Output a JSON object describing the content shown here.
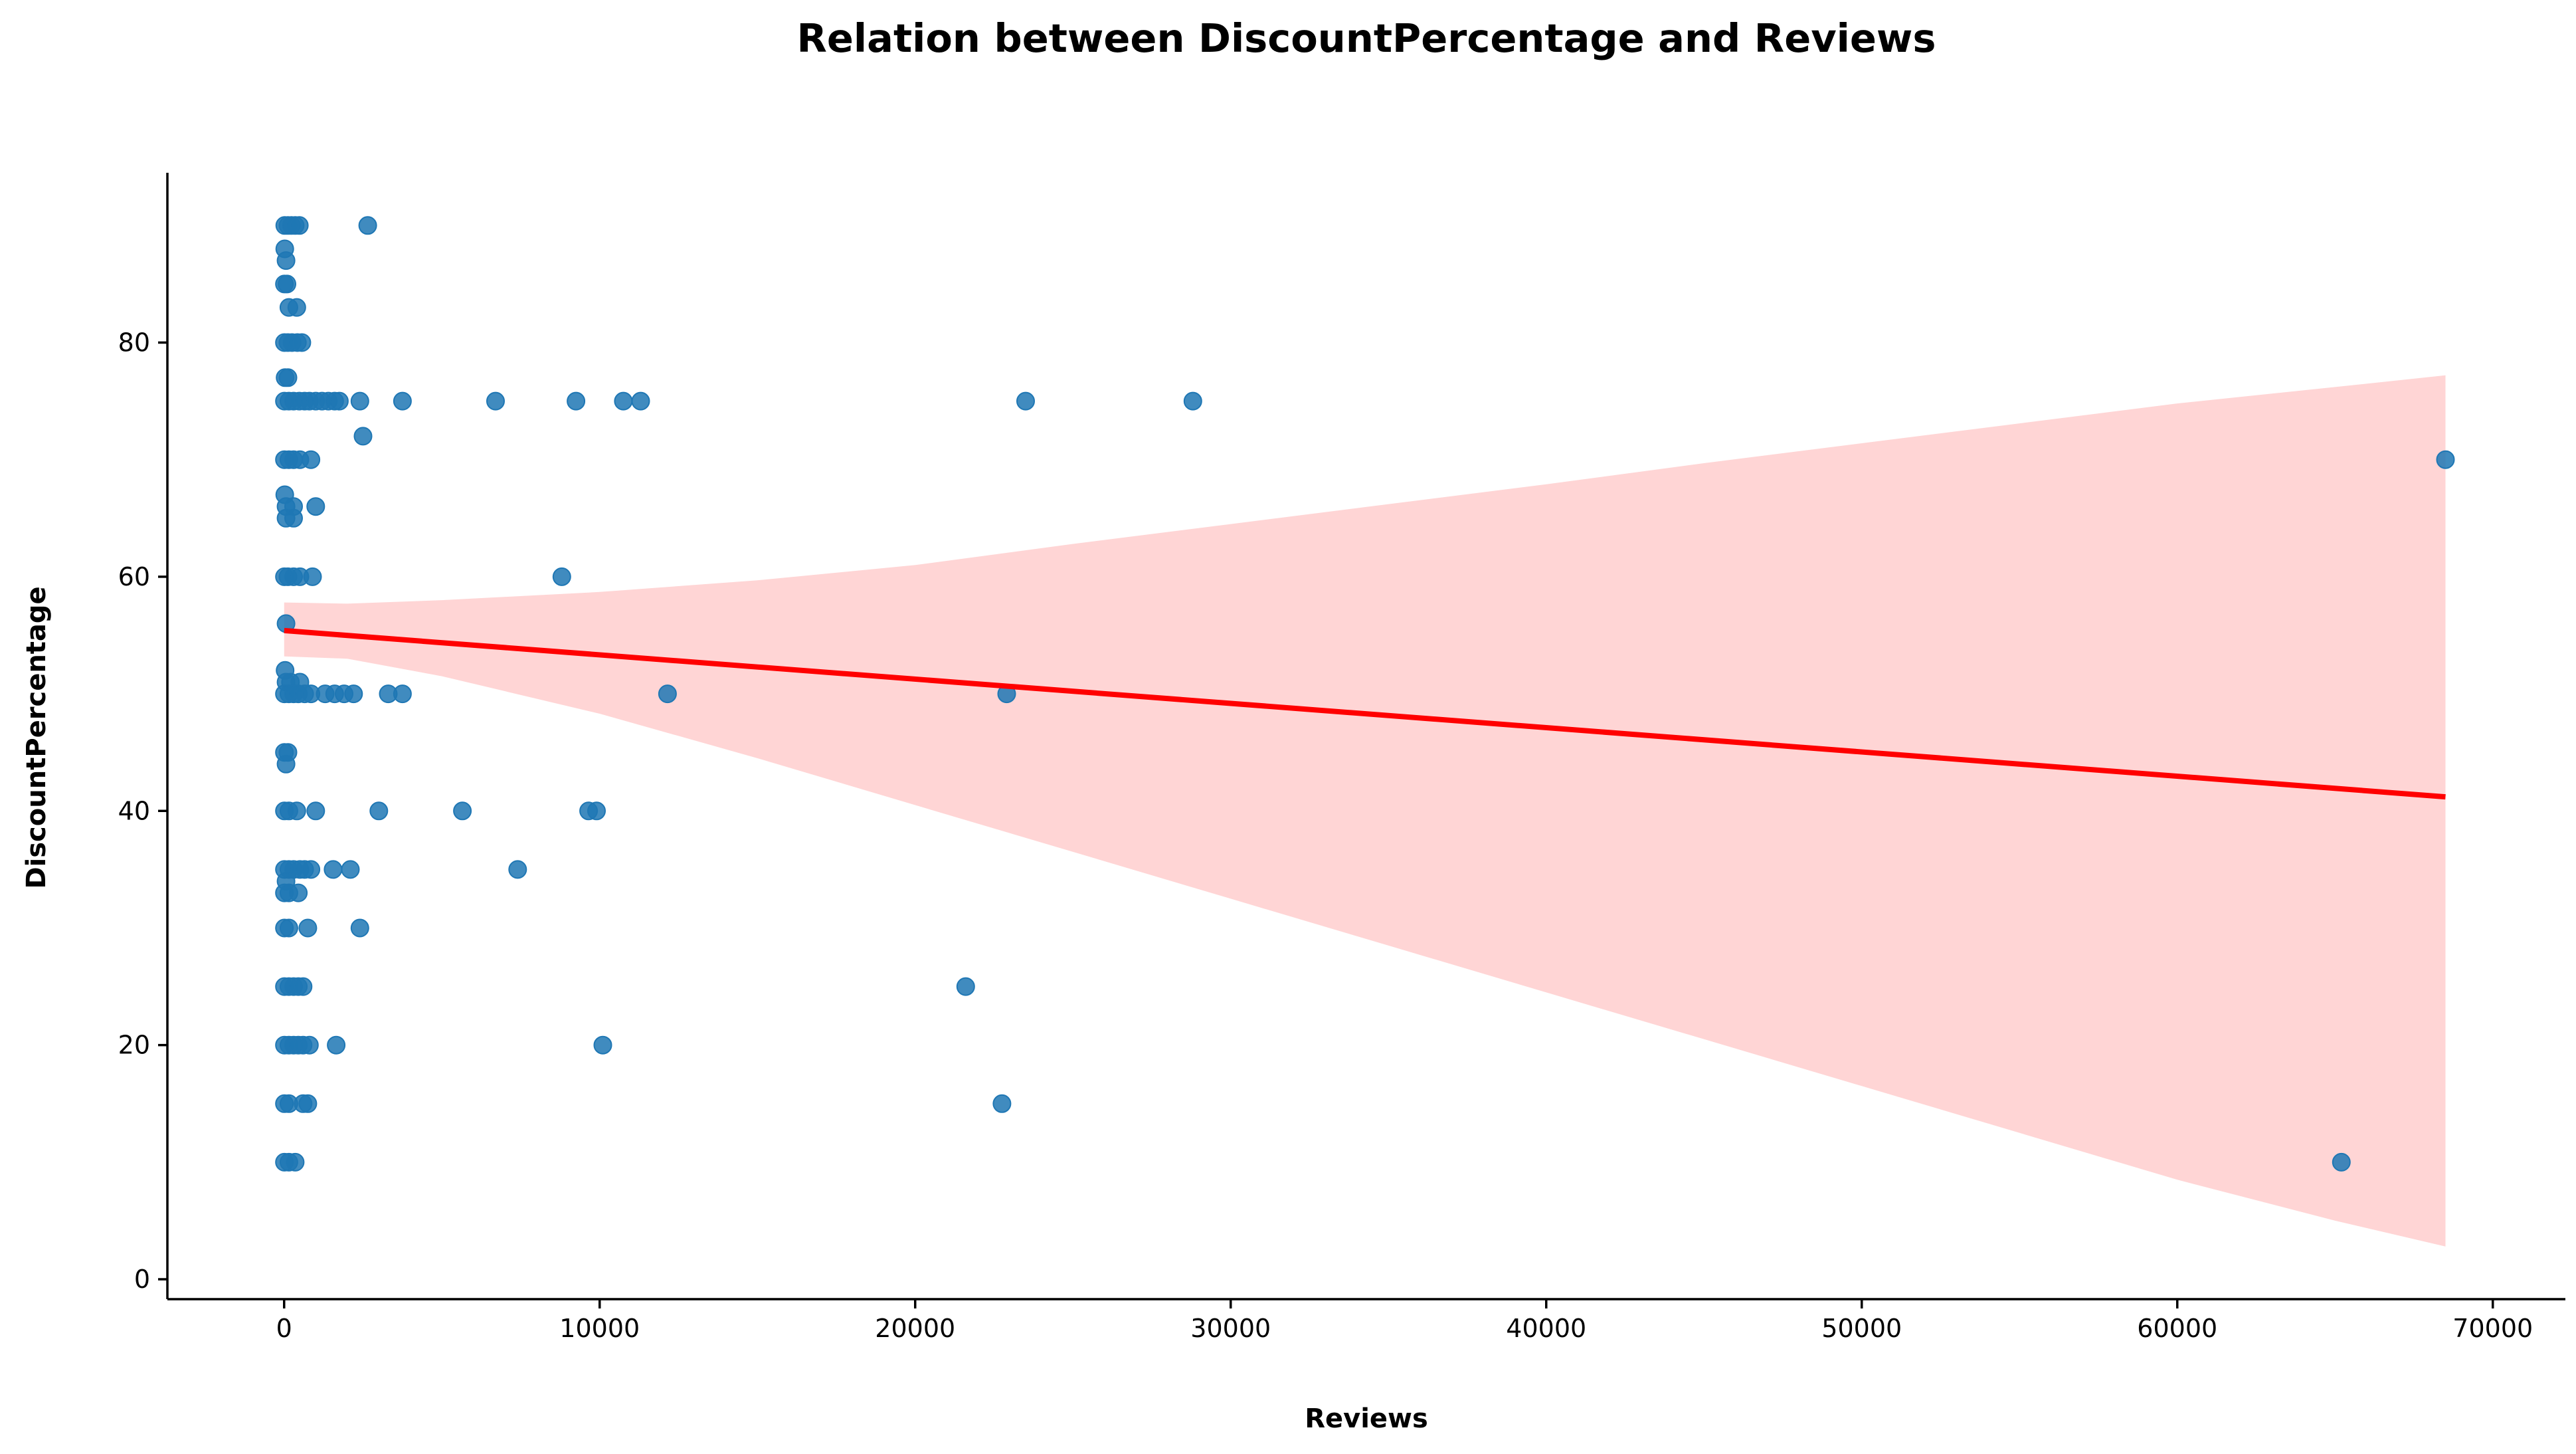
{
  "chart_data": {
    "type": "scatter",
    "title": "Relation between DiscountPercentage and Reviews",
    "xlabel": "Reviews",
    "ylabel": "DiscountPercentage",
    "xlim": [
      -3700,
      72300
    ],
    "ylim": [
      -1.7,
      94.5
    ],
    "xticks": [
      0,
      10000,
      20000,
      30000,
      40000,
      50000,
      60000,
      70000
    ],
    "yticks": [
      0,
      20,
      40,
      60,
      80
    ],
    "grid": false,
    "legend": "none",
    "point_color": "#1f77b4",
    "line_color": "#ff0000",
    "band_color": "#ffb3b3",
    "points": [
      {
        "x": 20,
        "y": 90
      },
      {
        "x": 120,
        "y": 90
      },
      {
        "x": 230,
        "y": 90
      },
      {
        "x": 350,
        "y": 90
      },
      {
        "x": 480,
        "y": 90
      },
      {
        "x": 2650,
        "y": 90
      },
      {
        "x": 20,
        "y": 88
      },
      {
        "x": 60,
        "y": 87
      },
      {
        "x": 10,
        "y": 85
      },
      {
        "x": 90,
        "y": 85
      },
      {
        "x": 150,
        "y": 83
      },
      {
        "x": 400,
        "y": 83
      },
      {
        "x": 10,
        "y": 80
      },
      {
        "x": 120,
        "y": 80
      },
      {
        "x": 250,
        "y": 80
      },
      {
        "x": 420,
        "y": 80
      },
      {
        "x": 560,
        "y": 80
      },
      {
        "x": 30,
        "y": 77
      },
      {
        "x": 120,
        "y": 77
      },
      {
        "x": 10,
        "y": 75
      },
      {
        "x": 150,
        "y": 75
      },
      {
        "x": 300,
        "y": 75
      },
      {
        "x": 480,
        "y": 75
      },
      {
        "x": 650,
        "y": 75
      },
      {
        "x": 800,
        "y": 75
      },
      {
        "x": 1000,
        "y": 75
      },
      {
        "x": 1200,
        "y": 75
      },
      {
        "x": 1400,
        "y": 75
      },
      {
        "x": 1600,
        "y": 75
      },
      {
        "x": 1750,
        "y": 75
      },
      {
        "x": 2400,
        "y": 75
      },
      {
        "x": 3750,
        "y": 75
      },
      {
        "x": 6700,
        "y": 75
      },
      {
        "x": 9250,
        "y": 75
      },
      {
        "x": 10750,
        "y": 75
      },
      {
        "x": 11300,
        "y": 75
      },
      {
        "x": 23500,
        "y": 75
      },
      {
        "x": 28800,
        "y": 75
      },
      {
        "x": 2500,
        "y": 72
      },
      {
        "x": 10,
        "y": 70
      },
      {
        "x": 150,
        "y": 70
      },
      {
        "x": 300,
        "y": 70
      },
      {
        "x": 500,
        "y": 70
      },
      {
        "x": 850,
        "y": 70
      },
      {
        "x": 68500,
        "y": 70
      },
      {
        "x": 20,
        "y": 67
      },
      {
        "x": 60,
        "y": 66
      },
      {
        "x": 300,
        "y": 66
      },
      {
        "x": 1000,
        "y": 66
      },
      {
        "x": 60,
        "y": 65
      },
      {
        "x": 300,
        "y": 65
      },
      {
        "x": 10,
        "y": 60
      },
      {
        "x": 120,
        "y": 60
      },
      {
        "x": 300,
        "y": 60
      },
      {
        "x": 500,
        "y": 60
      },
      {
        "x": 900,
        "y": 60
      },
      {
        "x": 8800,
        "y": 60
      },
      {
        "x": 60,
        "y": 56
      },
      {
        "x": 30,
        "y": 52
      },
      {
        "x": 60,
        "y": 51
      },
      {
        "x": 200,
        "y": 51
      },
      {
        "x": 500,
        "y": 51
      },
      {
        "x": 10,
        "y": 50
      },
      {
        "x": 150,
        "y": 50
      },
      {
        "x": 300,
        "y": 50
      },
      {
        "x": 450,
        "y": 50
      },
      {
        "x": 650,
        "y": 50
      },
      {
        "x": 850,
        "y": 50
      },
      {
        "x": 1300,
        "y": 50
      },
      {
        "x": 1600,
        "y": 50
      },
      {
        "x": 1900,
        "y": 50
      },
      {
        "x": 2200,
        "y": 50
      },
      {
        "x": 3300,
        "y": 50
      },
      {
        "x": 3750,
        "y": 50
      },
      {
        "x": 12150,
        "y": 50
      },
      {
        "x": 22900,
        "y": 50
      },
      {
        "x": 10,
        "y": 45
      },
      {
        "x": 120,
        "y": 45
      },
      {
        "x": 60,
        "y": 44
      },
      {
        "x": 10,
        "y": 40
      },
      {
        "x": 150,
        "y": 40
      },
      {
        "x": 400,
        "y": 40
      },
      {
        "x": 1000,
        "y": 40
      },
      {
        "x": 3000,
        "y": 40
      },
      {
        "x": 5650,
        "y": 40
      },
      {
        "x": 9650,
        "y": 40
      },
      {
        "x": 9900,
        "y": 40
      },
      {
        "x": 10,
        "y": 35
      },
      {
        "x": 150,
        "y": 35
      },
      {
        "x": 300,
        "y": 35
      },
      {
        "x": 500,
        "y": 35
      },
      {
        "x": 650,
        "y": 35
      },
      {
        "x": 850,
        "y": 35
      },
      {
        "x": 1550,
        "y": 35
      },
      {
        "x": 2100,
        "y": 35
      },
      {
        "x": 7400,
        "y": 35
      },
      {
        "x": 60,
        "y": 34
      },
      {
        "x": 10,
        "y": 33
      },
      {
        "x": 150,
        "y": 33
      },
      {
        "x": 450,
        "y": 33
      },
      {
        "x": 10,
        "y": 30
      },
      {
        "x": 150,
        "y": 30
      },
      {
        "x": 750,
        "y": 30
      },
      {
        "x": 2400,
        "y": 30
      },
      {
        "x": 10,
        "y": 25
      },
      {
        "x": 150,
        "y": 25
      },
      {
        "x": 300,
        "y": 25
      },
      {
        "x": 450,
        "y": 25
      },
      {
        "x": 600,
        "y": 25
      },
      {
        "x": 21600,
        "y": 25
      },
      {
        "x": 10,
        "y": 20
      },
      {
        "x": 150,
        "y": 20
      },
      {
        "x": 300,
        "y": 20
      },
      {
        "x": 450,
        "y": 20
      },
      {
        "x": 600,
        "y": 20
      },
      {
        "x": 800,
        "y": 20
      },
      {
        "x": 1650,
        "y": 20
      },
      {
        "x": 10100,
        "y": 20
      },
      {
        "x": 10,
        "y": 15
      },
      {
        "x": 150,
        "y": 15
      },
      {
        "x": 600,
        "y": 15
      },
      {
        "x": 750,
        "y": 15
      },
      {
        "x": 22750,
        "y": 15
      },
      {
        "x": 10,
        "y": 10
      },
      {
        "x": 150,
        "y": 10
      },
      {
        "x": 350,
        "y": 10
      },
      {
        "x": 65200,
        "y": 10
      }
    ],
    "regression_line": {
      "x": [
        0,
        68500
      ],
      "y": [
        55.4,
        41.2
      ]
    },
    "confidence_band": {
      "x": [
        0,
        2000,
        5000,
        10000,
        15000,
        20000,
        25000,
        30000,
        35000,
        40000,
        45000,
        50000,
        55000,
        60000,
        65000,
        68500
      ],
      "upper": [
        57.8,
        57.7,
        58.0,
        58.7,
        59.7,
        61.0,
        62.8,
        64.5,
        66.2,
        67.9,
        69.7,
        71.4,
        73.1,
        74.8,
        76.2,
        77.2
      ],
      "lower": [
        53.2,
        53.0,
        51.5,
        48.3,
        44.5,
        40.5,
        36.5,
        32.5,
        28.5,
        24.5,
        20.5,
        16.5,
        12.5,
        8.5,
        5.0,
        2.8
      ]
    }
  }
}
